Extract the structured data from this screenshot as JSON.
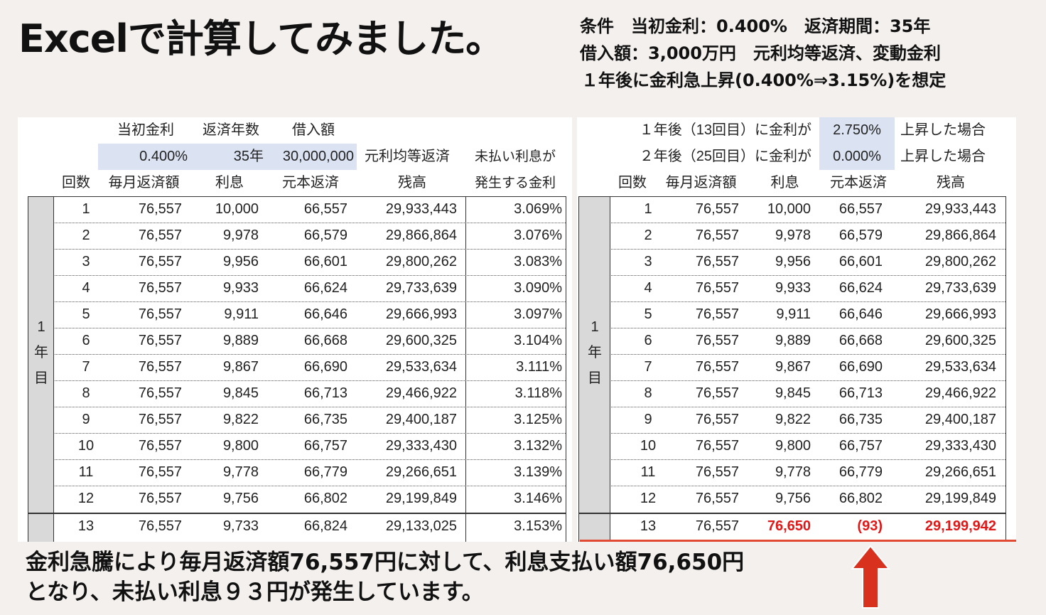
{
  "title": "Excelで計算してみました。",
  "conditions": [
    "条件　当初金利：0.400%　返済期間：35年",
    "借入額：3,000万円　元利均等返済、変動金利",
    "１年後に金利急上昇(0.400%⇒3.15%)を想定"
  ],
  "left_sheet": {
    "param_labels": [
      "当初金利",
      "返済年数",
      "借入額"
    ],
    "param_values": [
      "0.400%",
      "35年",
      "30,000,000"
    ],
    "method": "元利均等返済",
    "note_line1": "未払い利息が",
    "note_line2": "発生する金利",
    "headers": [
      "回数",
      "毎月返済額",
      "利息",
      "元本返済",
      "残高"
    ],
    "year_label": [
      "1",
      "年",
      "目"
    ],
    "rows": [
      [
        "1",
        "76,557",
        "10,000",
        "66,557",
        "29,933,443",
        "3.069%"
      ],
      [
        "2",
        "76,557",
        "9,978",
        "66,579",
        "29,866,864",
        "3.076%"
      ],
      [
        "3",
        "76,557",
        "9,956",
        "66,601",
        "29,800,262",
        "3.083%"
      ],
      [
        "4",
        "76,557",
        "9,933",
        "66,624",
        "29,733,639",
        "3.090%"
      ],
      [
        "5",
        "76,557",
        "9,911",
        "66,646",
        "29,666,993",
        "3.097%"
      ],
      [
        "6",
        "76,557",
        "9,889",
        "66,668",
        "29,600,325",
        "3.104%"
      ],
      [
        "7",
        "76,557",
        "9,867",
        "66,690",
        "29,533,634",
        "3.111%"
      ],
      [
        "8",
        "76,557",
        "9,845",
        "66,713",
        "29,466,922",
        "3.118%"
      ],
      [
        "9",
        "76,557",
        "9,822",
        "66,735",
        "29,400,187",
        "3.125%"
      ],
      [
        "10",
        "76,557",
        "9,800",
        "66,757",
        "29,333,430",
        "3.132%"
      ],
      [
        "11",
        "76,557",
        "9,778",
        "66,779",
        "29,266,651",
        "3.139%"
      ],
      [
        "12",
        "76,557",
        "9,756",
        "66,802",
        "29,199,849",
        "3.146%"
      ]
    ],
    "row13": [
      "13",
      "76,557",
      "9,733",
      "66,824",
      "29,133,025",
      "3.153%"
    ]
  },
  "right_sheet": {
    "line1": {
      "label": "１年後（13回目）に金利が",
      "value": "2.750%",
      "suffix": "上昇した場合"
    },
    "line2": {
      "label": "２年後（25回目）に金利が",
      "value": "0.000%",
      "suffix": "上昇した場合"
    },
    "headers": [
      "回数",
      "毎月返済額",
      "利息",
      "元本返済",
      "残高"
    ],
    "year_label": [
      "1",
      "年",
      "目"
    ],
    "rows": [
      [
        "1",
        "76,557",
        "10,000",
        "66,557",
        "29,933,443"
      ],
      [
        "2",
        "76,557",
        "9,978",
        "66,579",
        "29,866,864"
      ],
      [
        "3",
        "76,557",
        "9,956",
        "66,601",
        "29,800,262"
      ],
      [
        "4",
        "76,557",
        "9,933",
        "66,624",
        "29,733,639"
      ],
      [
        "5",
        "76,557",
        "9,911",
        "66,646",
        "29,666,993"
      ],
      [
        "6",
        "76,557",
        "9,889",
        "66,668",
        "29,600,325"
      ],
      [
        "7",
        "76,557",
        "9,867",
        "66,690",
        "29,533,634"
      ],
      [
        "8",
        "76,557",
        "9,845",
        "66,713",
        "29,466,922"
      ],
      [
        "9",
        "76,557",
        "9,822",
        "66,735",
        "29,400,187"
      ],
      [
        "10",
        "76,557",
        "9,800",
        "66,757",
        "29,333,430"
      ],
      [
        "11",
        "76,557",
        "9,778",
        "66,779",
        "29,266,651"
      ],
      [
        "12",
        "76,557",
        "9,756",
        "66,802",
        "29,199,849"
      ]
    ],
    "row13": [
      "13",
      "76,557",
      "76,650",
      "(93)",
      "29,199,942"
    ]
  },
  "caption": [
    "金利急騰により毎月返済額76,557円に対して、利息支払い額76,650円",
    "となり、未払い利息９３円が発生しています。"
  ],
  "colors": {
    "highlight": "#e01818",
    "shade": "#dbe3f3",
    "arrow": "#d8321e"
  }
}
